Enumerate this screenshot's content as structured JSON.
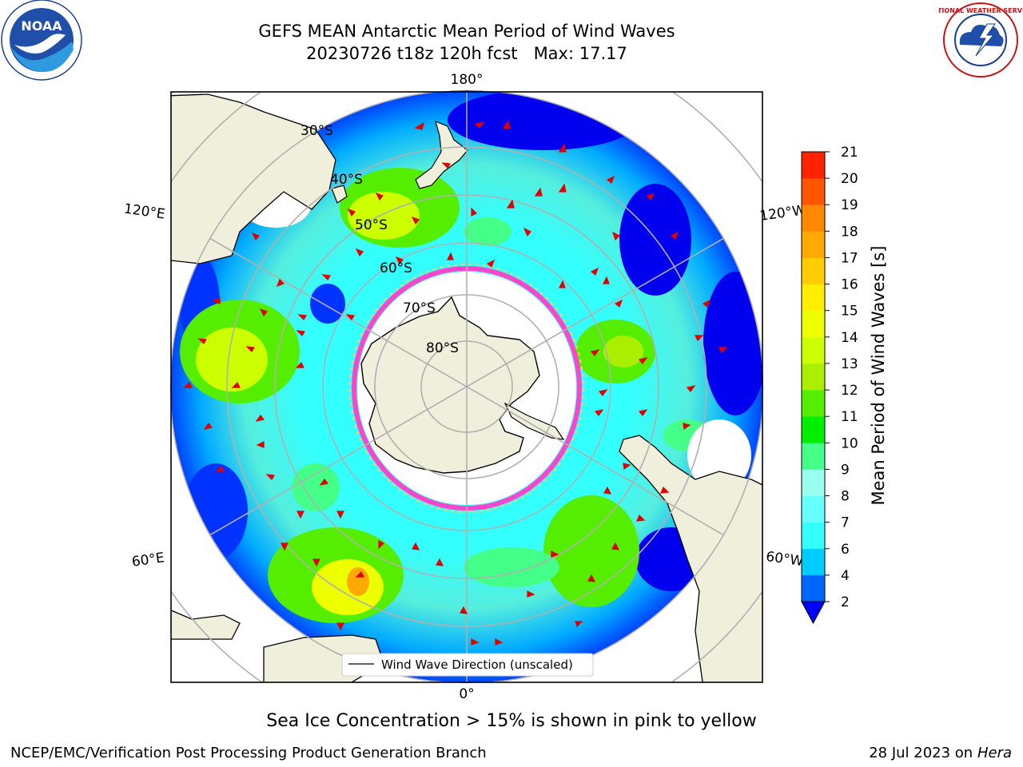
{
  "header": {
    "title": "GEFS MEAN Antarctic Mean Period of Wind Waves",
    "subtitle": "20230726 t18z 120h fcst   Max: 17.17"
  },
  "logos": {
    "left": {
      "icon": "noaa-logo",
      "text": "NOAA"
    },
    "right": {
      "icon": "national-weather-service-logo",
      "text": "NATIONAL WEATHER SERVICE"
    }
  },
  "map": {
    "projection": "south-polar-stereographic",
    "longitude_labels": [
      "180°",
      "120°E",
      "120°W",
      "60°E",
      "60°W",
      "0°"
    ],
    "latitude_labels": [
      "30°S",
      "40°S",
      "50°S",
      "60°S",
      "70°S",
      "80°S"
    ],
    "land_color": "#efefdb",
    "arrow_color": "#e00000",
    "legend_label": "Wind Wave Direction (unscaled)"
  },
  "colorbar": {
    "label": "Mean Period of Wind Waves [s]",
    "tick_labels": [
      "2",
      "4",
      "6",
      "7",
      "8",
      "9",
      "10",
      "11",
      "12",
      "13",
      "14",
      "15",
      "16",
      "17",
      "18",
      "19",
      "20",
      "21"
    ],
    "colors": [
      "#0066ff",
      "#00ccff",
      "#33ffff",
      "#66ffff",
      "#99ffee",
      "#44ff88",
      "#00ee00",
      "#55ee00",
      "#aaee00",
      "#ccff00",
      "#eeff00",
      "#ffee00",
      "#ffcc00",
      "#ffaa00",
      "#ff8800",
      "#ff5500",
      "#ff2200"
    ],
    "underflow_color": "#0000ff"
  },
  "footer": {
    "note": "Sea Ice Concentration > 15% is shown in pink to yellow",
    "credit": "NCEP/EMC/Verification Post Processing Product Generation Branch",
    "date_prefix": "28 Jul 2023 on ",
    "machine": "Hera"
  }
}
